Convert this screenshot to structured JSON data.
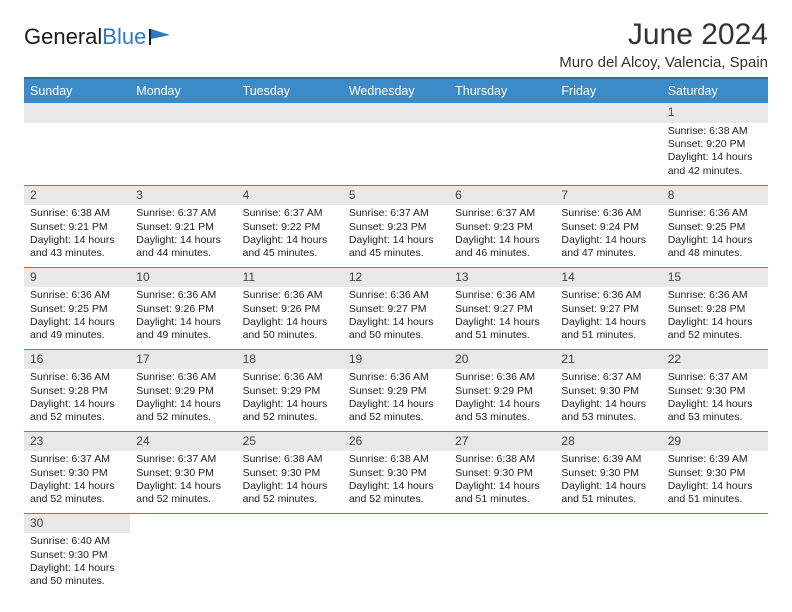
{
  "brand": {
    "part1": "General",
    "part2": "Blue"
  },
  "title": "June 2024",
  "location": "Muro del Alcoy, Valencia, Spain",
  "colors": {
    "header_bg": "#3b8bc9",
    "header_text": "#ffffff",
    "border": "#4a86b8",
    "daynum_bg": "#e8e8e8",
    "text": "#222222"
  },
  "weekdays": [
    "Sunday",
    "Monday",
    "Tuesday",
    "Wednesday",
    "Thursday",
    "Friday",
    "Saturday"
  ],
  "weeks": [
    [
      null,
      null,
      null,
      null,
      null,
      null,
      {
        "n": "1",
        "rise": "6:38 AM",
        "set": "9:20 PM",
        "dl": "14 hours and 42 minutes."
      }
    ],
    [
      {
        "n": "2",
        "rise": "6:38 AM",
        "set": "9:21 PM",
        "dl": "14 hours and 43 minutes."
      },
      {
        "n": "3",
        "rise": "6:37 AM",
        "set": "9:21 PM",
        "dl": "14 hours and 44 minutes."
      },
      {
        "n": "4",
        "rise": "6:37 AM",
        "set": "9:22 PM",
        "dl": "14 hours and 45 minutes."
      },
      {
        "n": "5",
        "rise": "6:37 AM",
        "set": "9:23 PM",
        "dl": "14 hours and 45 minutes."
      },
      {
        "n": "6",
        "rise": "6:37 AM",
        "set": "9:23 PM",
        "dl": "14 hours and 46 minutes."
      },
      {
        "n": "7",
        "rise": "6:36 AM",
        "set": "9:24 PM",
        "dl": "14 hours and 47 minutes."
      },
      {
        "n": "8",
        "rise": "6:36 AM",
        "set": "9:25 PM",
        "dl": "14 hours and 48 minutes."
      }
    ],
    [
      {
        "n": "9",
        "rise": "6:36 AM",
        "set": "9:25 PM",
        "dl": "14 hours and 49 minutes."
      },
      {
        "n": "10",
        "rise": "6:36 AM",
        "set": "9:26 PM",
        "dl": "14 hours and 49 minutes."
      },
      {
        "n": "11",
        "rise": "6:36 AM",
        "set": "9:26 PM",
        "dl": "14 hours and 50 minutes."
      },
      {
        "n": "12",
        "rise": "6:36 AM",
        "set": "9:27 PM",
        "dl": "14 hours and 50 minutes."
      },
      {
        "n": "13",
        "rise": "6:36 AM",
        "set": "9:27 PM",
        "dl": "14 hours and 51 minutes."
      },
      {
        "n": "14",
        "rise": "6:36 AM",
        "set": "9:27 PM",
        "dl": "14 hours and 51 minutes."
      },
      {
        "n": "15",
        "rise": "6:36 AM",
        "set": "9:28 PM",
        "dl": "14 hours and 52 minutes."
      }
    ],
    [
      {
        "n": "16",
        "rise": "6:36 AM",
        "set": "9:28 PM",
        "dl": "14 hours and 52 minutes."
      },
      {
        "n": "17",
        "rise": "6:36 AM",
        "set": "9:29 PM",
        "dl": "14 hours and 52 minutes."
      },
      {
        "n": "18",
        "rise": "6:36 AM",
        "set": "9:29 PM",
        "dl": "14 hours and 52 minutes."
      },
      {
        "n": "19",
        "rise": "6:36 AM",
        "set": "9:29 PM",
        "dl": "14 hours and 52 minutes."
      },
      {
        "n": "20",
        "rise": "6:36 AM",
        "set": "9:29 PM",
        "dl": "14 hours and 53 minutes."
      },
      {
        "n": "21",
        "rise": "6:37 AM",
        "set": "9:30 PM",
        "dl": "14 hours and 53 minutes."
      },
      {
        "n": "22",
        "rise": "6:37 AM",
        "set": "9:30 PM",
        "dl": "14 hours and 53 minutes."
      }
    ],
    [
      {
        "n": "23",
        "rise": "6:37 AM",
        "set": "9:30 PM",
        "dl": "14 hours and 52 minutes."
      },
      {
        "n": "24",
        "rise": "6:37 AM",
        "set": "9:30 PM",
        "dl": "14 hours and 52 minutes."
      },
      {
        "n": "25",
        "rise": "6:38 AM",
        "set": "9:30 PM",
        "dl": "14 hours and 52 minutes."
      },
      {
        "n": "26",
        "rise": "6:38 AM",
        "set": "9:30 PM",
        "dl": "14 hours and 52 minutes."
      },
      {
        "n": "27",
        "rise": "6:38 AM",
        "set": "9:30 PM",
        "dl": "14 hours and 51 minutes."
      },
      {
        "n": "28",
        "rise": "6:39 AM",
        "set": "9:30 PM",
        "dl": "14 hours and 51 minutes."
      },
      {
        "n": "29",
        "rise": "6:39 AM",
        "set": "9:30 PM",
        "dl": "14 hours and 51 minutes."
      }
    ],
    [
      {
        "n": "30",
        "rise": "6:40 AM",
        "set": "9:30 PM",
        "dl": "14 hours and 50 minutes."
      },
      null,
      null,
      null,
      null,
      null,
      null
    ]
  ],
  "labels": {
    "sunrise": "Sunrise:",
    "sunset": "Sunset:",
    "daylight": "Daylight:"
  }
}
